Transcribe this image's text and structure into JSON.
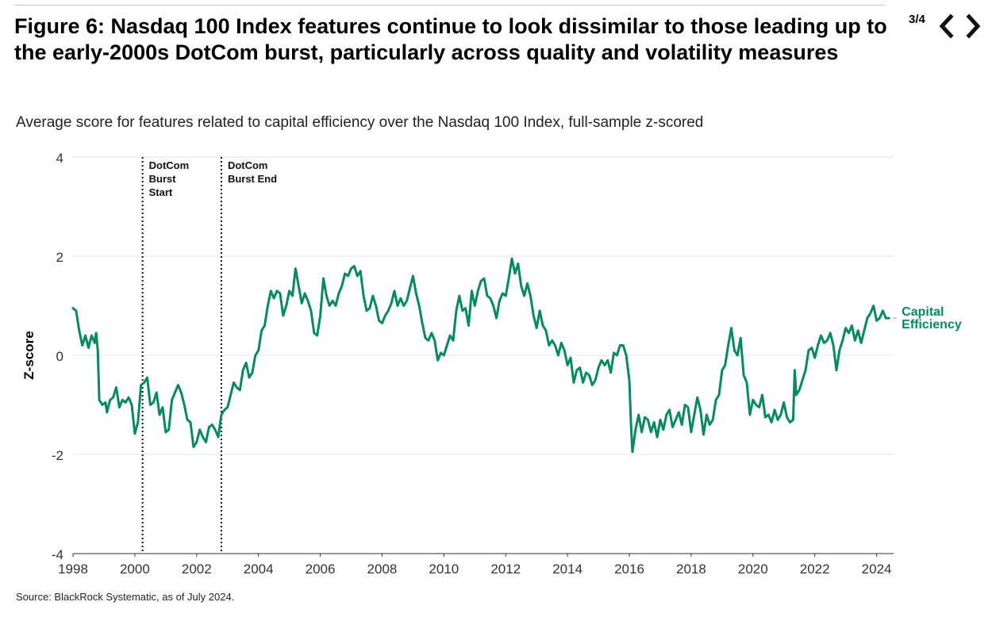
{
  "header": {
    "title": "Figure 6: Nasdaq 100 Index features continue to look dissimilar to those leading up to the early-2000s DotCom burst, particularly across quality and volatility measures",
    "pager": "3/4",
    "prev_icon": "chevron-left-icon",
    "next_icon": "chevron-right-icon"
  },
  "footer": {
    "source": "Source: BlackRock Systematic, as of July 2024."
  },
  "colors": {
    "series": "#078a5c",
    "grid": "#e3e3e3",
    "axis": "#333333"
  },
  "chart_data": {
    "type": "line",
    "title": "Figure 6: Nasdaq 100 Index features continue to look dissimilar to those leading up to the early-2000s DotCom burst, particularly across quality and volatility measures",
    "subtitle": "Average score for features related to capital efficiency over the Nasdaq 100 Index, full-sample z-scored",
    "xlabel": "",
    "ylabel": "Z-score",
    "xlim": [
      1998,
      2024.55
    ],
    "ylim": [
      -4,
      4
    ],
    "x_ticks": [
      1998,
      2000,
      2002,
      2004,
      2006,
      2008,
      2010,
      2012,
      2014,
      2016,
      2018,
      2020,
      2022,
      2024
    ],
    "y_ticks": [
      -4,
      -2,
      0,
      2,
      4
    ],
    "grid": true,
    "legend": "end-of-line label",
    "annotations": [
      {
        "x": 2000.25,
        "lines": [
          "DotCom",
          "Burst",
          "Start"
        ]
      },
      {
        "x": 2002.8,
        "lines": [
          "DotCom",
          "Burst End"
        ]
      }
    ],
    "series": [
      {
        "name": "Capital Efficiency",
        "label_lines": [
          "Capital",
          "Efficiency"
        ],
        "color": "#078a5c",
        "points": [
          [
            1998.0,
            0.95
          ],
          [
            1998.1,
            0.9
          ],
          [
            1998.2,
            0.5
          ],
          [
            1998.3,
            0.2
          ],
          [
            1998.4,
            0.4
          ],
          [
            1998.5,
            0.15
          ],
          [
            1998.6,
            0.4
          ],
          [
            1998.7,
            0.25
          ],
          [
            1998.75,
            0.45
          ],
          [
            1998.8,
            0.1
          ],
          [
            1998.85,
            -0.9
          ],
          [
            1998.95,
            -1.0
          ],
          [
            1999.05,
            -0.95
          ],
          [
            1999.1,
            -1.15
          ],
          [
            1999.2,
            -0.9
          ],
          [
            1999.3,
            -0.85
          ],
          [
            1999.4,
            -0.65
          ],
          [
            1999.5,
            -1.05
          ],
          [
            1999.6,
            -0.9
          ],
          [
            1999.7,
            -0.95
          ],
          [
            1999.8,
            -0.85
          ],
          [
            1999.9,
            -1.0
          ],
          [
            2000.0,
            -1.58
          ],
          [
            2000.1,
            -1.35
          ],
          [
            2000.2,
            -0.6
          ],
          [
            2000.3,
            -0.55
          ],
          [
            2000.4,
            -0.45
          ],
          [
            2000.5,
            -1.0
          ],
          [
            2000.6,
            -0.95
          ],
          [
            2000.7,
            -0.75
          ],
          [
            2000.8,
            -1.2
          ],
          [
            2000.9,
            -1.05
          ],
          [
            2001.0,
            -1.55
          ],
          [
            2001.1,
            -1.5
          ],
          [
            2001.2,
            -0.9
          ],
          [
            2001.3,
            -0.75
          ],
          [
            2001.4,
            -0.6
          ],
          [
            2001.5,
            -0.75
          ],
          [
            2001.6,
            -1.0
          ],
          [
            2001.7,
            -1.3
          ],
          [
            2001.8,
            -1.35
          ],
          [
            2001.9,
            -1.85
          ],
          [
            2002.0,
            -1.75
          ],
          [
            2002.1,
            -1.5
          ],
          [
            2002.2,
            -1.65
          ],
          [
            2002.3,
            -1.75
          ],
          [
            2002.4,
            -1.45
          ],
          [
            2002.5,
            -1.4
          ],
          [
            2002.6,
            -1.5
          ],
          [
            2002.7,
            -1.65
          ],
          [
            2002.8,
            -1.2
          ],
          [
            2002.9,
            -1.1
          ],
          [
            2003.0,
            -1.05
          ],
          [
            2003.1,
            -0.8
          ],
          [
            2003.2,
            -0.55
          ],
          [
            2003.3,
            -0.65
          ],
          [
            2003.4,
            -0.7
          ],
          [
            2003.5,
            -0.3
          ],
          [
            2003.6,
            -0.15
          ],
          [
            2003.7,
            -0.45
          ],
          [
            2003.8,
            -0.35
          ],
          [
            2003.9,
            0.0
          ],
          [
            2004.0,
            0.1
          ],
          [
            2004.1,
            0.5
          ],
          [
            2004.2,
            0.6
          ],
          [
            2004.3,
            1.0
          ],
          [
            2004.4,
            1.3
          ],
          [
            2004.5,
            1.15
          ],
          [
            2004.6,
            1.3
          ],
          [
            2004.7,
            1.25
          ],
          [
            2004.8,
            0.8
          ],
          [
            2004.9,
            1.0
          ],
          [
            2005.0,
            1.3
          ],
          [
            2005.1,
            1.2
          ],
          [
            2005.2,
            1.75
          ],
          [
            2005.3,
            1.4
          ],
          [
            2005.4,
            1.05
          ],
          [
            2005.5,
            1.25
          ],
          [
            2005.6,
            1.1
          ],
          [
            2005.7,
            0.9
          ],
          [
            2005.8,
            0.45
          ],
          [
            2005.9,
            0.4
          ],
          [
            2006.0,
            0.8
          ],
          [
            2006.1,
            1.55
          ],
          [
            2006.2,
            1.2
          ],
          [
            2006.3,
            1.0
          ],
          [
            2006.4,
            1.1
          ],
          [
            2006.5,
            1.0
          ],
          [
            2006.6,
            1.25
          ],
          [
            2006.7,
            1.4
          ],
          [
            2006.8,
            1.65
          ],
          [
            2006.9,
            1.6
          ],
          [
            2007.0,
            1.75
          ],
          [
            2007.1,
            1.8
          ],
          [
            2007.2,
            1.6
          ],
          [
            2007.3,
            1.7
          ],
          [
            2007.4,
            1.2
          ],
          [
            2007.5,
            0.9
          ],
          [
            2007.6,
            0.95
          ],
          [
            2007.7,
            1.2
          ],
          [
            2007.8,
            1.0
          ],
          [
            2007.9,
            0.7
          ],
          [
            2008.0,
            0.65
          ],
          [
            2008.1,
            0.8
          ],
          [
            2008.2,
            0.9
          ],
          [
            2008.3,
            1.05
          ],
          [
            2008.4,
            1.3
          ],
          [
            2008.5,
            1.0
          ],
          [
            2008.6,
            1.15
          ],
          [
            2008.7,
            1.0
          ],
          [
            2008.8,
            1.1
          ],
          [
            2008.9,
            1.35
          ],
          [
            2009.0,
            1.6
          ],
          [
            2009.1,
            1.25
          ],
          [
            2009.2,
            1.0
          ],
          [
            2009.3,
            0.65
          ],
          [
            2009.4,
            0.35
          ],
          [
            2009.5,
            0.3
          ],
          [
            2009.6,
            0.45
          ],
          [
            2009.7,
            0.3
          ],
          [
            2009.8,
            -0.1
          ],
          [
            2009.9,
            0.05
          ],
          [
            2010.0,
            0.0
          ],
          [
            2010.1,
            0.2
          ],
          [
            2010.2,
            0.4
          ],
          [
            2010.3,
            0.3
          ],
          [
            2010.4,
            0.9
          ],
          [
            2010.5,
            1.2
          ],
          [
            2010.6,
            0.9
          ],
          [
            2010.7,
            0.95
          ],
          [
            2010.8,
            0.6
          ],
          [
            2010.9,
            1.3
          ],
          [
            2011.0,
            1.0
          ],
          [
            2011.1,
            1.3
          ],
          [
            2011.2,
            1.5
          ],
          [
            2011.3,
            1.55
          ],
          [
            2011.4,
            1.2
          ],
          [
            2011.5,
            1.15
          ],
          [
            2011.6,
            1.0
          ],
          [
            2011.7,
            0.75
          ],
          [
            2011.8,
            1.1
          ],
          [
            2011.9,
            1.25
          ],
          [
            2012.0,
            1.2
          ],
          [
            2012.1,
            1.55
          ],
          [
            2012.2,
            1.95
          ],
          [
            2012.3,
            1.65
          ],
          [
            2012.4,
            1.85
          ],
          [
            2012.5,
            1.4
          ],
          [
            2012.6,
            1.2
          ],
          [
            2012.7,
            1.45
          ],
          [
            2012.8,
            1.2
          ],
          [
            2012.9,
            0.8
          ],
          [
            2013.0,
            0.55
          ],
          [
            2013.1,
            0.9
          ],
          [
            2013.2,
            0.6
          ],
          [
            2013.3,
            0.5
          ],
          [
            2013.4,
            0.2
          ],
          [
            2013.5,
            0.3
          ],
          [
            2013.6,
            0.2
          ],
          [
            2013.7,
            0.0
          ],
          [
            2013.8,
            0.25
          ],
          [
            2013.9,
            0.1
          ],
          [
            2014.0,
            -0.2
          ],
          [
            2014.1,
            -0.05
          ],
          [
            2014.2,
            -0.55
          ],
          [
            2014.3,
            -0.3
          ],
          [
            2014.4,
            -0.25
          ],
          [
            2014.5,
            -0.55
          ],
          [
            2014.6,
            -0.35
          ],
          [
            2014.7,
            -0.4
          ],
          [
            2014.8,
            -0.6
          ],
          [
            2014.9,
            -0.5
          ],
          [
            2015.0,
            -0.25
          ],
          [
            2015.1,
            -0.1
          ],
          [
            2015.2,
            -0.2
          ],
          [
            2015.3,
            -0.1
          ],
          [
            2015.4,
            -0.35
          ],
          [
            2015.5,
            0.05
          ],
          [
            2015.6,
            0.0
          ],
          [
            2015.7,
            0.2
          ],
          [
            2015.8,
            0.2
          ],
          [
            2015.9,
            0.0
          ],
          [
            2016.0,
            -0.5
          ],
          [
            2016.05,
            -1.35
          ],
          [
            2016.1,
            -1.95
          ],
          [
            2016.2,
            -1.5
          ],
          [
            2016.3,
            -1.2
          ],
          [
            2016.4,
            -1.55
          ],
          [
            2016.5,
            -1.25
          ],
          [
            2016.6,
            -1.3
          ],
          [
            2016.7,
            -1.55
          ],
          [
            2016.8,
            -1.35
          ],
          [
            2016.9,
            -1.65
          ],
          [
            2017.0,
            -1.3
          ],
          [
            2017.1,
            -1.5
          ],
          [
            2017.2,
            -1.2
          ],
          [
            2017.3,
            -1.1
          ],
          [
            2017.4,
            -1.45
          ],
          [
            2017.5,
            -1.3
          ],
          [
            2017.6,
            -1.15
          ],
          [
            2017.7,
            -1.4
          ],
          [
            2017.8,
            -1.0
          ],
          [
            2017.9,
            -1.05
          ],
          [
            2018.0,
            -1.55
          ],
          [
            2018.1,
            -1.2
          ],
          [
            2018.2,
            -0.85
          ],
          [
            2018.3,
            -1.1
          ],
          [
            2018.4,
            -1.6
          ],
          [
            2018.5,
            -1.2
          ],
          [
            2018.6,
            -1.4
          ],
          [
            2018.7,
            -1.3
          ],
          [
            2018.8,
            -0.9
          ],
          [
            2018.9,
            -0.8
          ],
          [
            2019.0,
            -0.3
          ],
          [
            2019.1,
            -0.2
          ],
          [
            2019.2,
            0.2
          ],
          [
            2019.3,
            0.55
          ],
          [
            2019.4,
            0.1
          ],
          [
            2019.5,
            0.0
          ],
          [
            2019.6,
            0.35
          ],
          [
            2019.7,
            -0.4
          ],
          [
            2019.8,
            -0.55
          ],
          [
            2019.9,
            -1.2
          ],
          [
            2020.0,
            -0.9
          ],
          [
            2020.1,
            -1.0
          ],
          [
            2020.2,
            -1.05
          ],
          [
            2020.3,
            -0.8
          ],
          [
            2020.4,
            -1.25
          ],
          [
            2020.5,
            -1.2
          ],
          [
            2020.6,
            -1.35
          ],
          [
            2020.7,
            -1.1
          ],
          [
            2020.8,
            -1.3
          ],
          [
            2020.9,
            -1.2
          ],
          [
            2021.0,
            -0.95
          ],
          [
            2021.1,
            -1.25
          ],
          [
            2021.2,
            -1.35
          ],
          [
            2021.3,
            -1.3
          ],
          [
            2021.35,
            -0.3
          ],
          [
            2021.4,
            -0.8
          ],
          [
            2021.5,
            -0.7
          ],
          [
            2021.6,
            -0.5
          ],
          [
            2021.7,
            -0.3
          ],
          [
            2021.8,
            0.1
          ],
          [
            2021.9,
            0.15
          ],
          [
            2022.0,
            -0.05
          ],
          [
            2022.1,
            0.2
          ],
          [
            2022.2,
            0.4
          ],
          [
            2022.3,
            0.25
          ],
          [
            2022.4,
            0.3
          ],
          [
            2022.5,
            0.45
          ],
          [
            2022.6,
            0.2
          ],
          [
            2022.7,
            -0.3
          ],
          [
            2022.8,
            0.1
          ],
          [
            2022.9,
            0.3
          ],
          [
            2023.0,
            0.55
          ],
          [
            2023.1,
            0.45
          ],
          [
            2023.2,
            0.6
          ],
          [
            2023.3,
            0.3
          ],
          [
            2023.4,
            0.5
          ],
          [
            2023.5,
            0.25
          ],
          [
            2023.6,
            0.5
          ],
          [
            2023.7,
            0.75
          ],
          [
            2023.8,
            0.85
          ],
          [
            2023.9,
            1.0
          ],
          [
            2024.0,
            0.7
          ],
          [
            2024.1,
            0.75
          ],
          [
            2024.2,
            0.9
          ],
          [
            2024.3,
            0.75
          ],
          [
            2024.4,
            0.75
          ]
        ]
      }
    ]
  }
}
